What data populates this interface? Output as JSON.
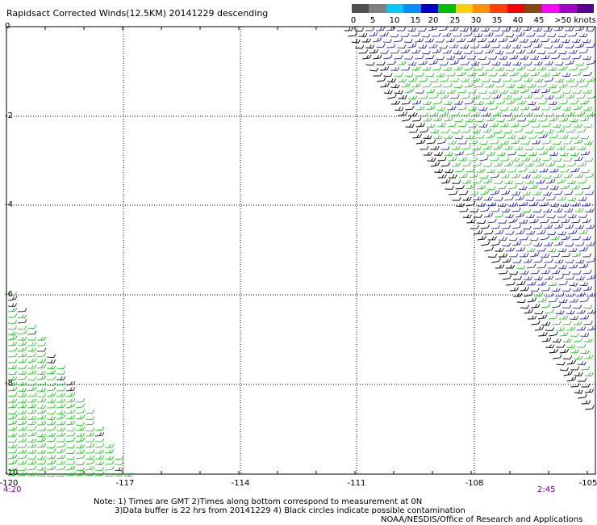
{
  "title": "Rapidsact Corrected Winds(12.5KM) 20141229 descending",
  "legend": {
    "labels": [
      "0",
      "5",
      "10",
      "15",
      "20",
      "25",
      "30",
      "35",
      "40",
      "45",
      ">50 knots"
    ],
    "colors": [
      "#505050",
      "#808080",
      "#00c8ff",
      "#0090ff",
      "#0000c8",
      "#00c000",
      "#ffd000",
      "#ff9000",
      "#ff4000",
      "#ff0000",
      "#8b4513",
      "#ff00ff",
      "#a000c8",
      "#5a0090"
    ]
  },
  "y_labels": [
    "0",
    "-2",
    "-4",
    "-6",
    "-8",
    "-10"
  ],
  "x_labels": [
    "-120",
    "-117",
    "-114",
    "-111",
    "-108",
    "-105"
  ],
  "times": {
    "left": "4:20",
    "right": "2:45"
  },
  "notes": {
    "line1": "Note: 1) Times are GMT 2)Times along bottom correspond to measurement at 0N",
    "line2": "3)Data buffer is 22 hrs from 20141229 4) Black circles indicate possible contamination"
  },
  "credit": "NOAA/NESDIS/Office of Research and Applications",
  "colors": {
    "green": "#00c000",
    "blue": "#0000c8",
    "black": "#000000",
    "time": "#800080"
  }
}
